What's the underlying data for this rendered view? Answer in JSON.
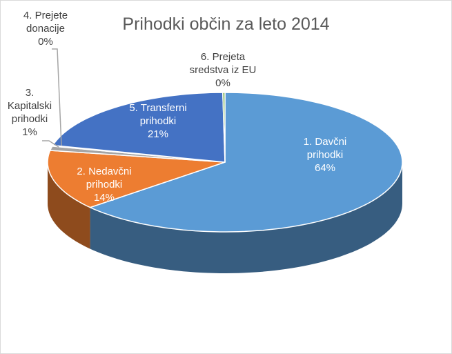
{
  "chart_data": {
    "type": "pie",
    "style": "3d",
    "title": "Prihodki občin za leto 2014",
    "slices": [
      {
        "name": "1. Davčni prihodki",
        "value": 64,
        "label": "64%",
        "color": "#5b9bd5"
      },
      {
        "name": "2. Nedavčni prihodki",
        "value": 14,
        "label": "14%",
        "color": "#ed7d31"
      },
      {
        "name": "3. Kapitalski prihodki",
        "value": 1,
        "label": "1%",
        "color": "#a5a5a5"
      },
      {
        "name": "4. Prejete donacije",
        "value": 0.2,
        "label": "0%",
        "color": "#ffc000"
      },
      {
        "name": "5. Transferni prihodki",
        "value": 21,
        "label": "21%",
        "color": "#4472c4"
      },
      {
        "name": "6. Prejeta sredstva iz EU",
        "value": 0.2,
        "label": "0%",
        "color": "#70ad47"
      }
    ]
  }
}
